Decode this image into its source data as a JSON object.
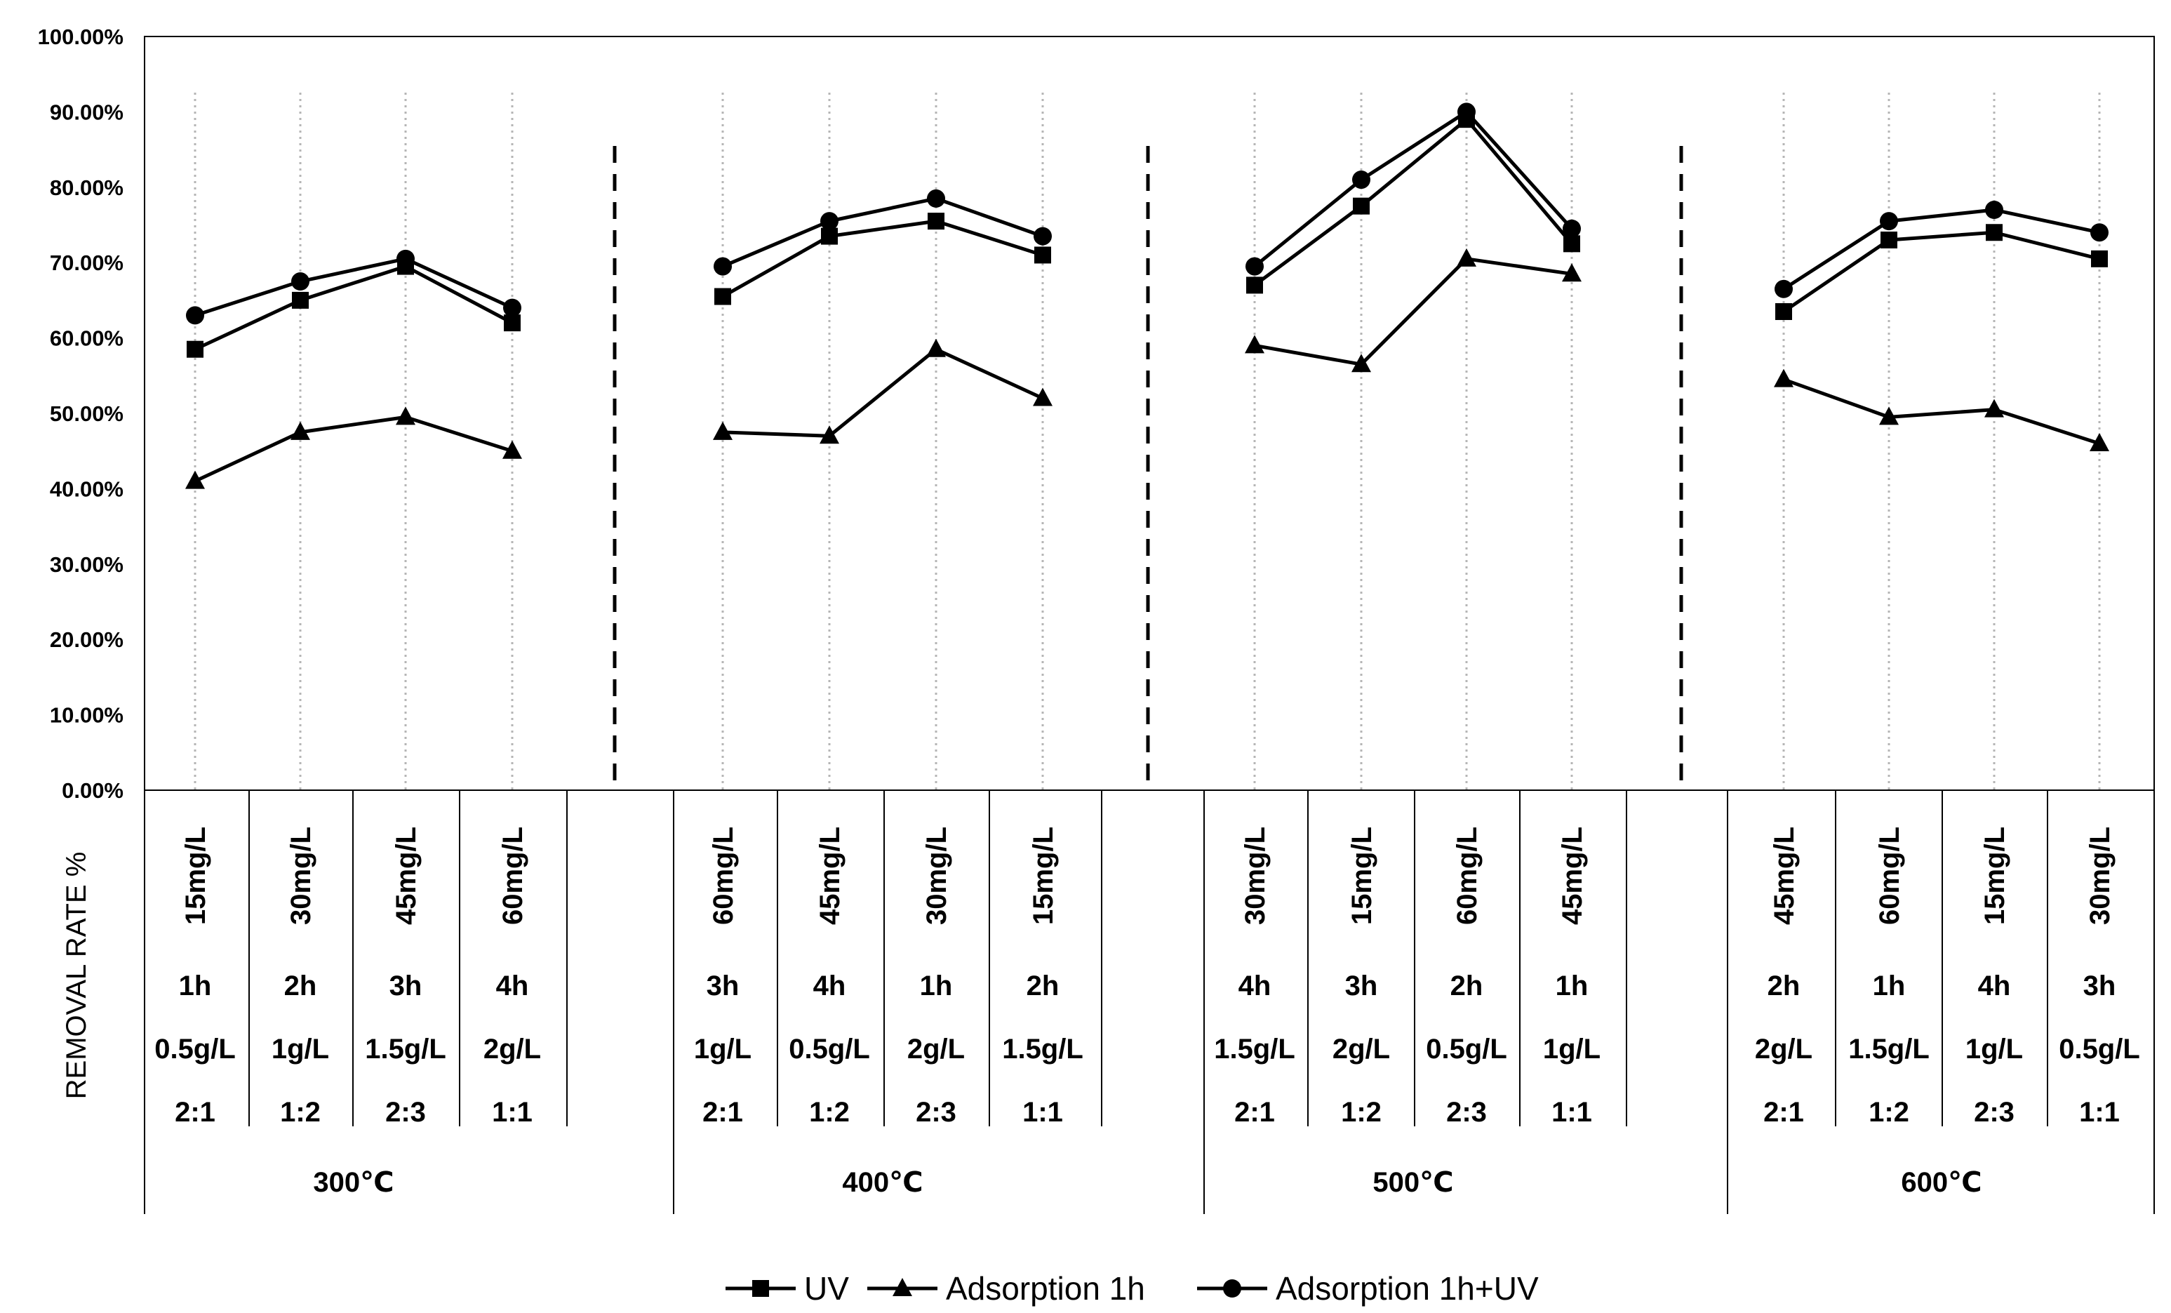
{
  "chart_data": {
    "type": "line",
    "ylabel": "REMOVAL RATE %",
    "ylim": [
      0,
      100
    ],
    "yticks": [
      "0.00%",
      "10.00%",
      "20.00%",
      "30.00%",
      "40.00%",
      "50.00%",
      "60.00%",
      "70.00%",
      "80.00%",
      "90.00%",
      "100.00%"
    ],
    "legend_position": "bottom",
    "groups": [
      {
        "label": "300℃",
        "points": [
          {
            "conc": "15mg/L",
            "time": "1h",
            "dose": "0.5g/L",
            "ratio": "2:1"
          },
          {
            "conc": "30mg/L",
            "time": "2h",
            "dose": "1g/L",
            "ratio": "1:2"
          },
          {
            "conc": "45mg/L",
            "time": "3h",
            "dose": "1.5g/L",
            "ratio": "2:3"
          },
          {
            "conc": "60mg/L",
            "time": "4h",
            "dose": "2g/L",
            "ratio": "1:1"
          }
        ]
      },
      {
        "label": "400℃",
        "points": [
          {
            "conc": "60mg/L",
            "time": "3h",
            "dose": "1g/L",
            "ratio": "2:1"
          },
          {
            "conc": "45mg/L",
            "time": "4h",
            "dose": "0.5g/L",
            "ratio": "1:2"
          },
          {
            "conc": "30mg/L",
            "time": "1h",
            "dose": "2g/L",
            "ratio": "2:3"
          },
          {
            "conc": "15mg/L",
            "time": "2h",
            "dose": "1.5g/L",
            "ratio": "1:1"
          }
        ]
      },
      {
        "label": "500℃",
        "points": [
          {
            "conc": "30mg/L",
            "time": "4h",
            "dose": "1.5g/L",
            "ratio": "2:1"
          },
          {
            "conc": "15mg/L",
            "time": "3h",
            "dose": "2g/L",
            "ratio": "1:2"
          },
          {
            "conc": "60mg/L",
            "time": "2h",
            "dose": "0.5g/L",
            "ratio": "2:3"
          },
          {
            "conc": "45mg/L",
            "time": "1h",
            "dose": "1g/L",
            "ratio": "1:1"
          }
        ]
      },
      {
        "label": "600℃",
        "points": [
          {
            "conc": "45mg/L",
            "time": "2h",
            "dose": "2g/L",
            "ratio": "2:1"
          },
          {
            "conc": "60mg/L",
            "time": "1h",
            "dose": "1.5g/L",
            "ratio": "1:2"
          },
          {
            "conc": "15mg/L",
            "time": "4h",
            "dose": "1g/L",
            "ratio": "2:3"
          },
          {
            "conc": "30mg/L",
            "time": "3h",
            "dose": "0.5g/L",
            "ratio": "1:1"
          }
        ]
      }
    ],
    "series": [
      {
        "name": "UV",
        "marker": "square",
        "values": [
          [
            58.5,
            65.0,
            69.5,
            62.0
          ],
          [
            65.5,
            73.5,
            75.5,
            71.0
          ],
          [
            67.0,
            77.5,
            89.0,
            72.5
          ],
          [
            63.5,
            73.0,
            74.0,
            70.5
          ]
        ]
      },
      {
        "name": "Adsorption 1h",
        "marker": "triangle",
        "values": [
          [
            41.0,
            47.5,
            49.5,
            45.0
          ],
          [
            47.5,
            47.0,
            58.5,
            52.0
          ],
          [
            59.0,
            56.5,
            70.5,
            68.5
          ],
          [
            54.5,
            49.5,
            50.5,
            46.0
          ]
        ]
      },
      {
        "name": "Adsorption 1h+UV",
        "marker": "circle",
        "values": [
          [
            63.0,
            67.5,
            70.5,
            64.0
          ],
          [
            69.5,
            75.5,
            78.5,
            73.5
          ],
          [
            69.5,
            81.0,
            90.0,
            74.5
          ],
          [
            66.5,
            75.5,
            77.0,
            74.0
          ]
        ]
      }
    ]
  }
}
